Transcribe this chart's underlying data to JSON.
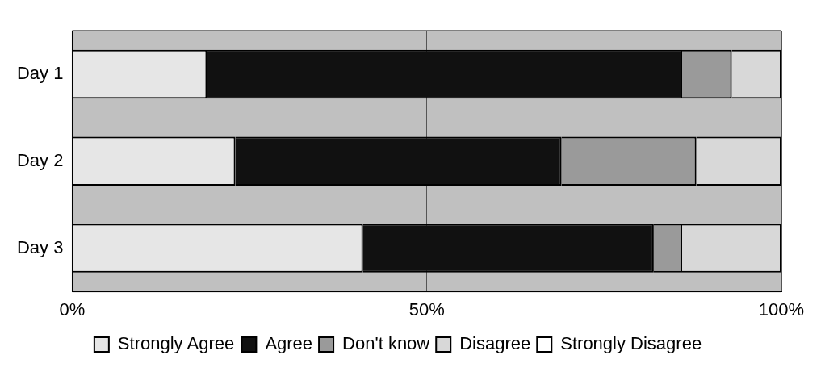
{
  "chart_data": {
    "type": "bar",
    "orientation": "horizontal",
    "stacked": true,
    "categories": [
      "Day 1",
      "Day 2",
      "Day 3"
    ],
    "series": [
      {
        "name": "Strongly Agree",
        "color": "#e6e6e6",
        "values": [
          19,
          23,
          41
        ]
      },
      {
        "name": "Agree",
        "color": "#111111",
        "values": [
          67,
          46,
          41
        ]
      },
      {
        "name": "Don't know",
        "color": "#9a9a9a",
        "values": [
          7,
          19,
          4
        ]
      },
      {
        "name": "Disagree",
        "color": "#d8d8d8",
        "values": [
          7,
          12,
          14
        ]
      },
      {
        "name": "Strongly Disagree",
        "color": "#ffffff",
        "values": [
          0,
          0,
          0
        ]
      }
    ],
    "xlim": [
      0,
      100
    ],
    "xticks": [
      {
        "value": 0,
        "label": "0%"
      },
      {
        "value": 50,
        "label": "50%"
      },
      {
        "value": 100,
        "label": "100%"
      }
    ],
    "grid": "x",
    "legend": "bottom"
  }
}
